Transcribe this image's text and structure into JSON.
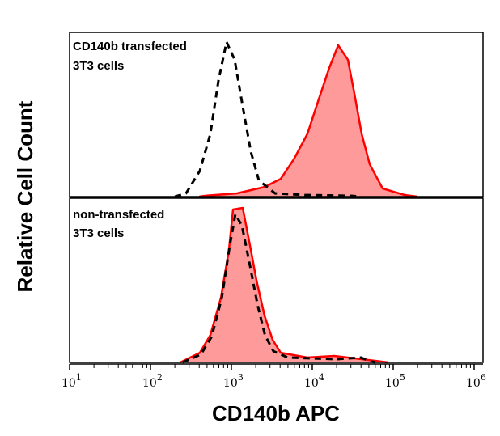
{
  "chart_data": [
    {
      "type": "area",
      "panel": "top",
      "annotation": [
        "CD140b transfected",
        "3T3 cells"
      ],
      "xscale": "log",
      "xlim": [
        10,
        1000000
      ],
      "ylim": [
        0,
        1
      ],
      "series": [
        {
          "style": "filled",
          "color": "#ff0000",
          "fill": "#ff9a9a",
          "points": [
            [
              400,
              0
            ],
            [
              470,
              0.005
            ],
            [
              1175,
              0.02
            ],
            [
              2570,
              0.06
            ],
            [
              4070,
              0.11
            ],
            [
              5890,
              0.23
            ],
            [
              8710,
              0.39
            ],
            [
              11750,
              0.59
            ],
            [
              16220,
              0.8
            ],
            [
              20890,
              0.94
            ],
            [
              27540,
              0.85
            ],
            [
              33110,
              0.64
            ],
            [
              40740,
              0.39
            ],
            [
              51290,
              0.2
            ],
            [
              74130,
              0.05
            ],
            [
              138000,
              0.01
            ],
            [
              200000,
              0
            ]
          ]
        },
        {
          "style": "dashed",
          "color": "#000000",
          "points": [
            [
              200,
              0
            ],
            [
              275,
              0.02
            ],
            [
              407,
              0.16
            ],
            [
              550,
              0.39
            ],
            [
              692,
              0.72
            ],
            [
              871,
              0.96
            ],
            [
              1096,
              0.85
            ],
            [
              1380,
              0.56
            ],
            [
              1738,
              0.28
            ],
            [
              2188,
              0.1
            ],
            [
              3467,
              0.02
            ],
            [
              8000,
              0.01
            ],
            [
              30000,
              0.005
            ],
            [
              40000,
              0
            ]
          ]
        }
      ]
    },
    {
      "type": "area",
      "panel": "bottom",
      "annotation": [
        "non-transfected",
        "3T3 cells"
      ],
      "xscale": "log",
      "xlim": [
        10,
        1000000
      ],
      "ylim": [
        0,
        1
      ],
      "series": [
        {
          "style": "filled",
          "color": "#ff0000",
          "fill": "#ff9a9a",
          "points": [
            [
              234,
              0
            ],
            [
              407,
              0.06
            ],
            [
              550,
              0.17
            ],
            [
              741,
              0.4
            ],
            [
              933,
              0.7
            ],
            [
              1047,
              0.95
            ],
            [
              1380,
              0.96
            ],
            [
              1738,
              0.7
            ],
            [
              2042,
              0.51
            ],
            [
              2570,
              0.29
            ],
            [
              3236,
              0.14
            ],
            [
              4070,
              0.06
            ],
            [
              8710,
              0.03
            ],
            [
              18620,
              0.04
            ],
            [
              40740,
              0.02
            ],
            [
              87100,
              0
            ]
          ]
        },
        {
          "style": "dashed",
          "color": "#000000",
          "points": [
            [
              250,
              0
            ],
            [
              420,
              0.05
            ],
            [
              570,
              0.16
            ],
            [
              760,
              0.4
            ],
            [
              950,
              0.72
            ],
            [
              1120,
              0.92
            ],
            [
              1350,
              0.85
            ],
            [
              1700,
              0.6
            ],
            [
              2100,
              0.36
            ],
            [
              2600,
              0.17
            ],
            [
              3300,
              0.07
            ],
            [
              5000,
              0.03
            ],
            [
              20000,
              0.02
            ],
            [
              40000,
              0.03
            ],
            [
              50000,
              0.01
            ],
            [
              60000,
              0
            ]
          ]
        }
      ]
    }
  ],
  "axes": {
    "xlabel": "CD140b APC",
    "ylabel": "Relative Cell Count",
    "xticks": [
      {
        "base": "10",
        "exp": "1"
      },
      {
        "base": "10",
        "exp": "2"
      },
      {
        "base": "10",
        "exp": "3"
      },
      {
        "base": "10",
        "exp": "4"
      },
      {
        "base": "10",
        "exp": "5"
      },
      {
        "base": "10",
        "exp": "6"
      }
    ]
  }
}
